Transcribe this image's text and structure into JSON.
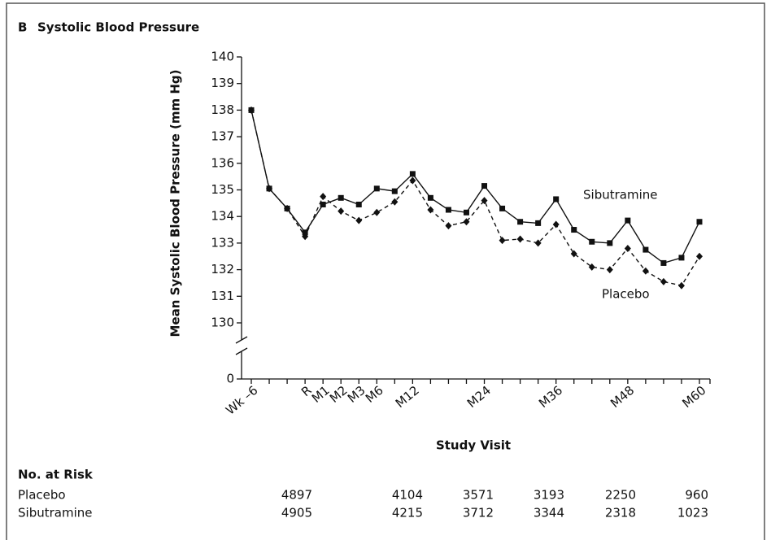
{
  "chart_data": {
    "type": "line",
    "panel": "B",
    "title": "Systolic Blood Pressure",
    "x_label": "Study Visit",
    "y_label": "Mean Systolic Blood Pressure (mm Hg)",
    "categories": [
      "Wk –6",
      null,
      null,
      "R",
      "M1",
      "M2",
      "M3",
      "M6",
      null,
      "M12",
      null,
      null,
      null,
      "M24",
      null,
      null,
      null,
      "M36",
      null,
      null,
      null,
      "M48",
      null,
      null,
      null,
      "M60"
    ],
    "series": [
      {
        "name": "Sibutramine",
        "color": "#111111",
        "dash": false,
        "marker": "square",
        "values": [
          138.0,
          135.05,
          134.3,
          133.4,
          134.45,
          134.7,
          134.45,
          135.05,
          134.95,
          135.6,
          134.7,
          134.25,
          134.15,
          135.15,
          134.3,
          133.8,
          133.75,
          134.65,
          133.5,
          133.05,
          133.0,
          133.85,
          132.75,
          132.25,
          132.45,
          133.8
        ]
      },
      {
        "name": "Placebo",
        "color": "#111111",
        "dash": true,
        "marker": "diamond",
        "values": [
          138.0,
          135.05,
          134.3,
          133.25,
          134.75,
          134.2,
          133.85,
          134.15,
          134.55,
          135.35,
          134.25,
          133.65,
          133.8,
          134.6,
          133.1,
          133.15,
          133.0,
          133.7,
          132.6,
          132.1,
          132.0,
          132.8,
          131.95,
          131.55,
          131.4,
          132.5
        ]
      }
    ],
    "ylim": [
      130,
      140
    ],
    "yticks": [
      0,
      130,
      131,
      132,
      133,
      134,
      135,
      136,
      137,
      138,
      139,
      140
    ],
    "y_break": true
  },
  "risk_table": {
    "title": "No. at Risk",
    "rows": [
      {
        "name": "Placebo",
        "values": [
          4897,
          4104,
          3571,
          3193,
          2250,
          960
        ]
      },
      {
        "name": "Sibutramine",
        "values": [
          4905,
          4215,
          3712,
          3344,
          2318,
          1023
        ]
      }
    ]
  }
}
